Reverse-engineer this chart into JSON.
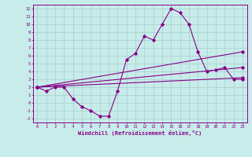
{
  "title": "",
  "xlabel": "Windchill (Refroidissement éolien,°C)",
  "ylabel": "",
  "background_color": "#c8ecea",
  "grid_color": "#a8d4d0",
  "line_color": "#880088",
  "xlim": [
    -0.5,
    23.5
  ],
  "ylim": [
    -2.5,
    12.5
  ],
  "xticks": [
    0,
    1,
    2,
    3,
    4,
    5,
    6,
    7,
    8,
    9,
    10,
    11,
    12,
    13,
    14,
    15,
    16,
    17,
    18,
    19,
    20,
    21,
    22,
    23
  ],
  "yticks": [
    -2,
    -1,
    0,
    1,
    2,
    3,
    4,
    5,
    6,
    7,
    8,
    9,
    10,
    11,
    12
  ],
  "series1_x": [
    0,
    1,
    2,
    3,
    4,
    5,
    6,
    7,
    8,
    9,
    10,
    11,
    12,
    13,
    14,
    15,
    16,
    17,
    18,
    19,
    20,
    21,
    22,
    23
  ],
  "series1_y": [
    2.0,
    1.5,
    2.0,
    2.0,
    0.5,
    -0.5,
    -1.0,
    -1.7,
    -1.7,
    1.5,
    5.5,
    6.3,
    8.5,
    8.0,
    10.0,
    12.0,
    11.5,
    10.0,
    6.5,
    4.0,
    4.2,
    4.5,
    3.0,
    3.0
  ],
  "series2_x": [
    0,
    23
  ],
  "series2_y": [
    2.0,
    6.5
  ],
  "series3_x": [
    0,
    23
  ],
  "series3_y": [
    2.0,
    4.5
  ],
  "series4_x": [
    0,
    23
  ],
  "series4_y": [
    2.0,
    3.2
  ]
}
